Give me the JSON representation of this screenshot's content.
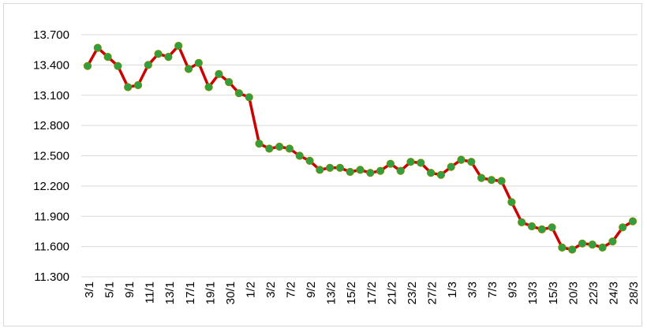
{
  "chart_data": {
    "type": "line",
    "title": "",
    "xlabel": "",
    "ylabel": "",
    "ylim": [
      11300,
      13700
    ],
    "y_ticks": [
      11300,
      11600,
      11900,
      12200,
      12500,
      12800,
      13100,
      13400,
      13700
    ],
    "y_tick_labels": [
      "11.300",
      "11.600",
      "11.900",
      "12.200",
      "12.500",
      "12.800",
      "13.100",
      "13.400",
      "13.700"
    ],
    "x_tick_labels": [
      "3/1",
      "5/1",
      "9/1",
      "11/1",
      "13/1",
      "17/1",
      "19/1",
      "30/1",
      "1/2",
      "3/2",
      "7/2",
      "9/2",
      "13/2",
      "15/2",
      "17/2",
      "21/2",
      "23/2",
      "27/2",
      "1/3",
      "3/3",
      "7/3",
      "9/3",
      "13/3",
      "15/3",
      "20/3",
      "22/3",
      "24/3",
      "28/3"
    ],
    "grid": "horizontal",
    "legend": "none",
    "colors": {
      "line": "#cc0000",
      "marker_fill": "#2ea043",
      "marker_edge": "#7a8a00",
      "grid": "#d9d9d9"
    },
    "series": [
      {
        "values": [
          13390,
          13570,
          13480,
          13390,
          13180,
          13200,
          13400,
          13510,
          13480,
          13590,
          13360,
          13420,
          13180,
          13310,
          13230,
          13120,
          13080,
          12620,
          12570,
          12590,
          12570,
          12500,
          12450,
          12360,
          12380,
          12380,
          12340,
          12360,
          12330,
          12350,
          12420,
          12350,
          12440,
          12430,
          12330,
          12310,
          12390,
          12460,
          12440,
          12280,
          12260,
          12250,
          12040,
          11840,
          11800,
          11770,
          11790,
          11590,
          11570,
          11630,
          11620,
          11590,
          11650,
          11790,
          11850
        ]
      }
    ]
  }
}
